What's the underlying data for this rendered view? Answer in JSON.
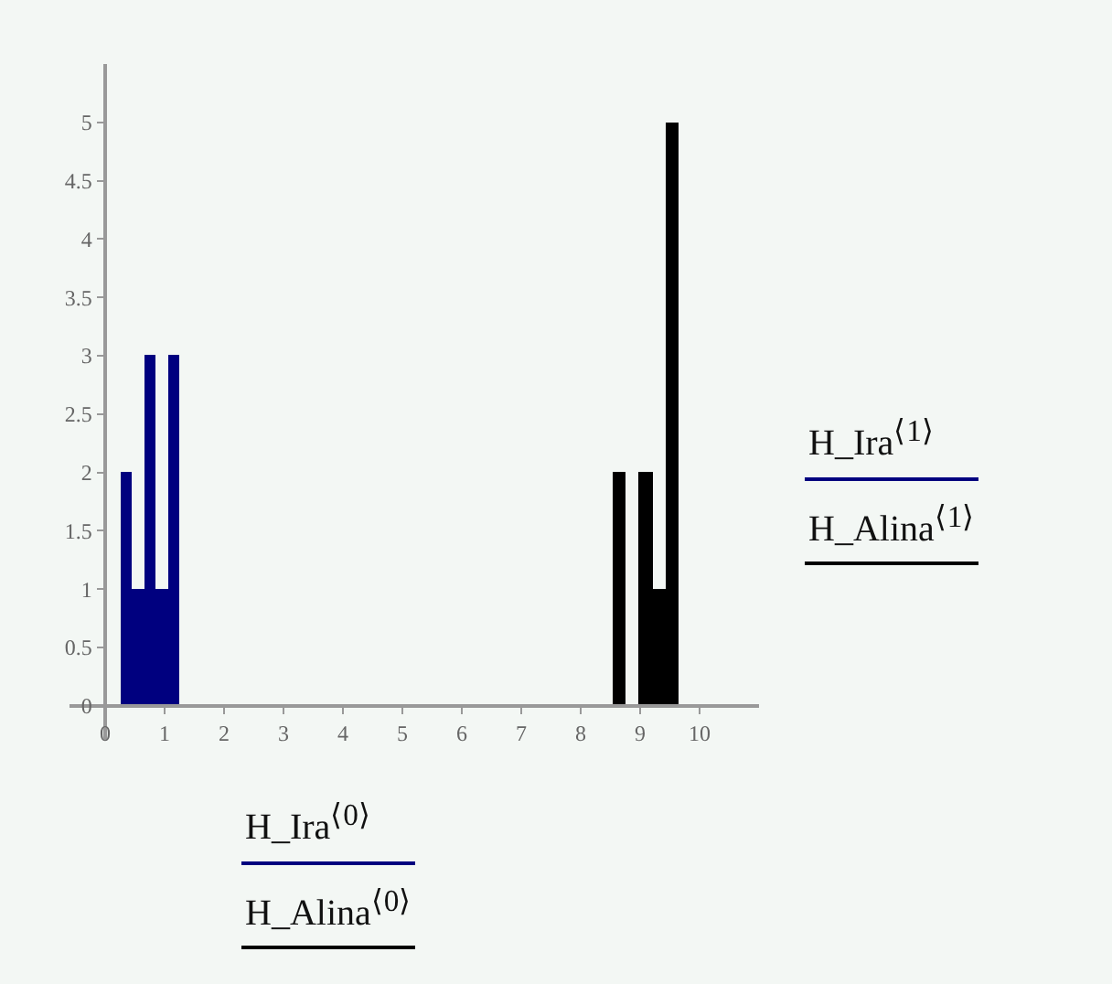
{
  "chart_data": {
    "type": "bar",
    "xlabel": "H_Ira$^{⟨0⟩}$\nH_Alina$^{⟨0⟩}$",
    "ylabel": "H_Ira$^{⟨1⟩}$\nH_Alina$^{⟨1⟩}$",
    "series": [
      {
        "color": "#00007f",
        "x": [
          0.35,
          0.55,
          0.75,
          0.95,
          1.15
        ],
        "values": [
          2,
          1,
          3,
          1,
          3
        ]
      },
      {
        "color": "#000000",
        "x": [
          8.65,
          8.87,
          9.09,
          9.31,
          9.53
        ],
        "values": [
          2,
          0,
          2,
          1,
          5
        ]
      }
    ],
    "xlim": [
      -0.6,
      11
    ],
    "ylim": [
      -0.3,
      5.5
    ],
    "xticks": [
      0,
      1,
      2,
      3,
      4,
      5,
      6,
      7,
      8,
      9,
      10
    ],
    "yticks": [
      0,
      0.5,
      1,
      1.5,
      2,
      2.5,
      3,
      3.5,
      4,
      4.5,
      5
    ]
  }
}
